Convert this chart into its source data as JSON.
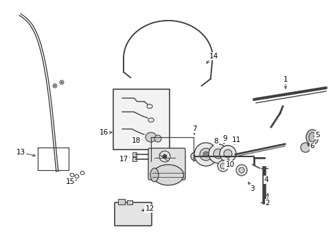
{
  "background_color": "#ffffff",
  "gray": "#404040",
  "light_gray": "#d0d0d0",
  "inset_bg": "#f2f2f2",
  "labels": [
    [
      "1",
      416,
      116,
      416,
      133
    ],
    [
      "2",
      390,
      296,
      390,
      278
    ],
    [
      "3",
      367,
      275,
      360,
      262
    ],
    [
      "4",
      388,
      262,
      382,
      248
    ],
    [
      "5",
      462,
      197,
      453,
      200
    ],
    [
      "6",
      455,
      213,
      444,
      210
    ],
    [
      "7",
      283,
      188,
      283,
      200
    ],
    [
      "8",
      315,
      206,
      318,
      215
    ],
    [
      "9",
      328,
      202,
      325,
      213
    ],
    [
      "10",
      335,
      240,
      331,
      228
    ],
    [
      "11",
      344,
      204,
      341,
      214
    ],
    [
      "12",
      218,
      304,
      203,
      308
    ],
    [
      "13",
      30,
      222,
      55,
      228
    ],
    [
      "14",
      311,
      82,
      298,
      95
    ],
    [
      "15",
      102,
      265,
      115,
      261
    ],
    [
      "16",
      151,
      193,
      167,
      193
    ],
    [
      "17",
      180,
      232,
      192,
      228
    ],
    [
      "18",
      198,
      205,
      205,
      207
    ]
  ]
}
